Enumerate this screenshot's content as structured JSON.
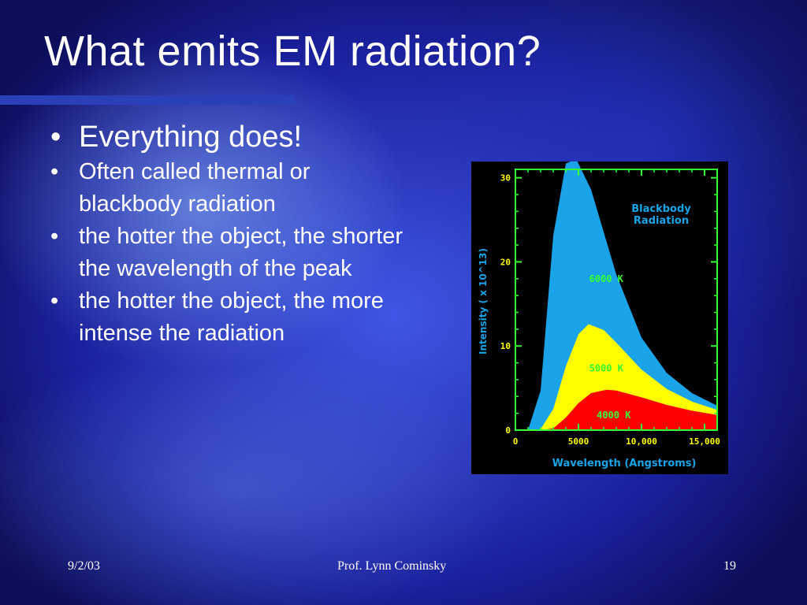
{
  "slide": {
    "title": "What emits EM radiation?",
    "bullets": [
      {
        "level": 1,
        "text": "Everything does!"
      },
      {
        "level": 2,
        "text": "Often called thermal or blackbody radiation"
      },
      {
        "level": 2,
        "text": "the hotter the object, the shorter the wavelength of the peak"
      },
      {
        "level": 2,
        "text": "the hotter the object, the more intense the radiation"
      }
    ],
    "bullet_symbol": "•"
  },
  "footer": {
    "date": "9/2/03",
    "author": "Prof. Lynn Cominsky",
    "page": "19"
  },
  "chart_data": {
    "type": "area",
    "title": "Blackbody Radiation",
    "xlabel": "Wavelength (Angstroms)",
    "ylabel": "Intensity ( x 10^13)",
    "xlim": [
      0,
      16000
    ],
    "ylim": [
      0,
      31
    ],
    "x_ticks": [
      "0",
      "5000",
      "10,000",
      "15,000"
    ],
    "x_tick_values": [
      0,
      5000,
      10000,
      15000
    ],
    "y_ticks": [
      "0",
      "10",
      "20",
      "30"
    ],
    "y_tick_values": [
      0,
      10,
      20,
      30
    ],
    "series": [
      {
        "name": "6000 K",
        "color": "#1aa3e8",
        "x": [
          1000,
          2000,
          3000,
          4000,
          4830,
          6000,
          8000,
          10000,
          12000,
          14000,
          16000
        ],
        "y": [
          0,
          4.7,
          23.1,
          31.7,
          32.2,
          28.6,
          18.5,
          11.0,
          6.8,
          4.4,
          2.9
        ]
      },
      {
        "name": "5000 K",
        "color": "#ffff00",
        "x": [
          1000,
          2000,
          3000,
          4000,
          5000,
          5800,
          7000,
          8000,
          10000,
          12000,
          14000,
          16000
        ],
        "y": [
          0,
          0.1,
          2.5,
          7.6,
          11.4,
          12.6,
          11.9,
          10.4,
          7.2,
          4.9,
          3.4,
          2.4
        ]
      },
      {
        "name": "4000 K",
        "color": "#ff0000",
        "x": [
          2000,
          3000,
          4000,
          5000,
          6000,
          7240,
          8000,
          10000,
          12000,
          14000,
          16000
        ],
        "y": [
          0,
          0.2,
          1.5,
          3.2,
          4.4,
          4.8,
          4.7,
          3.9,
          3.0,
          2.3,
          1.8
        ]
      }
    ],
    "grid": false,
    "frame_color": "#33ff33",
    "label_color": "#1aa3e8",
    "tick_label_color": "#ffff00"
  }
}
